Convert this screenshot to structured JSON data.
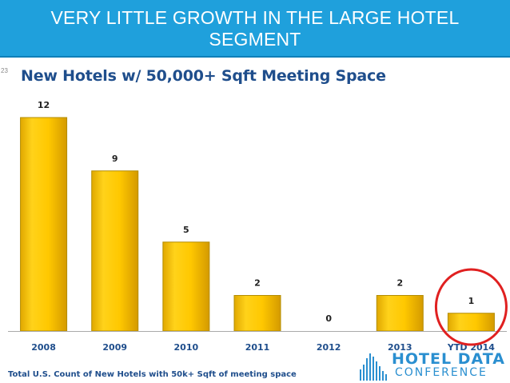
{
  "banner": {
    "title": "VERY LITTLE GROWTH IN THE LARGE HOTEL SEGMENT"
  },
  "slide_number": "23",
  "chart_data": {
    "type": "bar",
    "title": "New Hotels w/ 50,000+ Sqft Meeting Space",
    "categories": [
      "2008",
      "2009",
      "2010",
      "2011",
      "2012",
      "2013",
      "YTD 2014"
    ],
    "values": [
      12,
      9,
      5,
      2,
      0,
      2,
      1
    ],
    "ylim": [
      0,
      12
    ],
    "grid": false,
    "highlight": {
      "category": "YTD 2014",
      "style": "red circle"
    }
  },
  "footnote": "Total U.S. Count of New Hotels with 50k+ Sqft of meeting space",
  "logo": {
    "line1": "HOTEL DATA",
    "line2": "CONFERENCE"
  },
  "colors": {
    "banner": "#1fa0dc",
    "bar": "#f5c400",
    "bar_edge": "#b38c00",
    "title": "#1f4e8c",
    "highlight": "#e02020"
  }
}
